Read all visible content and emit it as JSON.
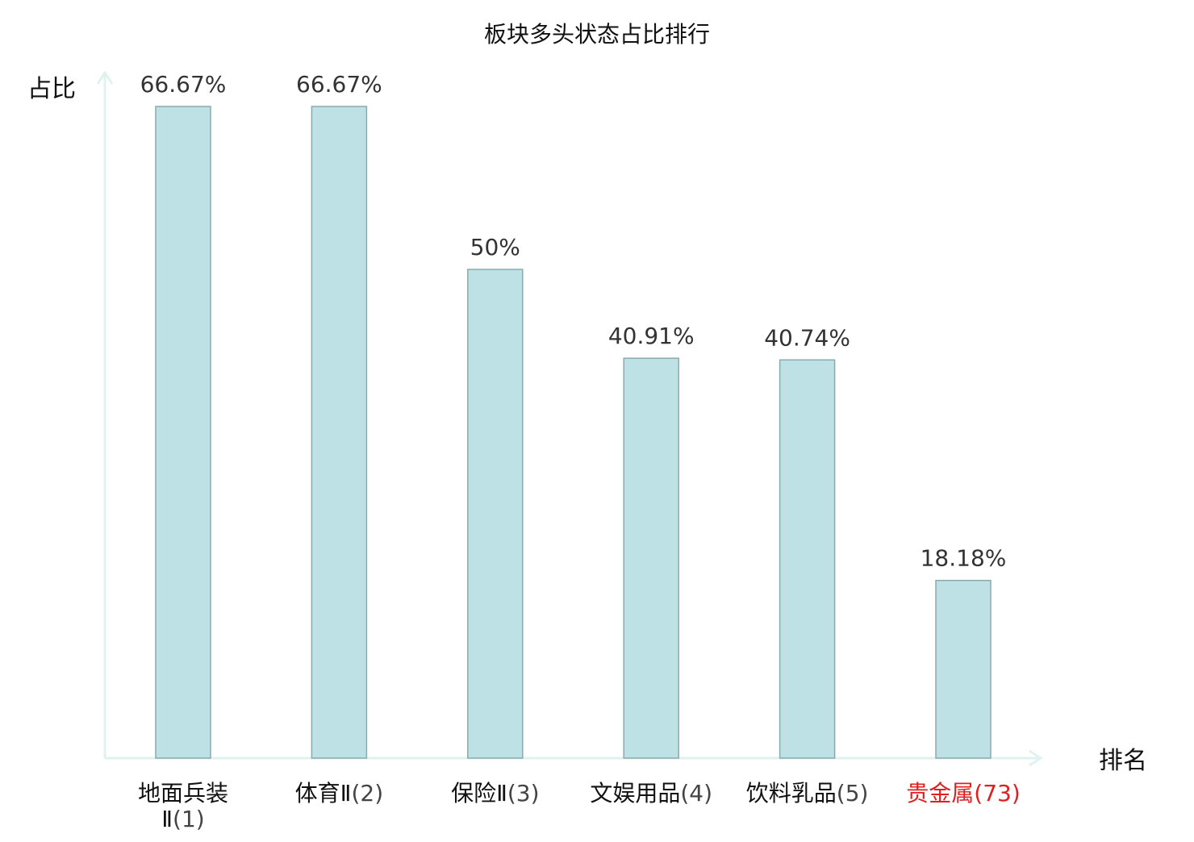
{
  "chart_data": {
    "type": "bar",
    "title": "板块多头状态占比排行",
    "xlabel": "排名",
    "ylabel": "占比",
    "categories": [
      {
        "label": "地面兵装Ⅱ",
        "rank": "(1)",
        "highlight": false
      },
      {
        "label": "体育Ⅱ",
        "rank": "(2)",
        "highlight": false
      },
      {
        "label": "保险Ⅱ",
        "rank": "(3)",
        "highlight": false
      },
      {
        "label": "文娱用品",
        "rank": "(4)",
        "highlight": false
      },
      {
        "label": "饮料乳品",
        "rank": "(5)",
        "highlight": false
      },
      {
        "label": "贵金属",
        "rank": "(73)",
        "highlight": true
      }
    ],
    "values": [
      66.67,
      66.67,
      50,
      40.91,
      40.74,
      18.18
    ],
    "value_labels": [
      "66.67%",
      "66.67%",
      "50%",
      "40.91%",
      "40.74%",
      "18.18%"
    ],
    "ylim": [
      0,
      66.67
    ],
    "grid": false,
    "legend": "none",
    "colors": {
      "bar_fill": "#bde1e4",
      "bar_stroke": "#8aabad",
      "axis": "#e0f2f0",
      "text": "#333333",
      "label_text": "#111111",
      "highlight_text": "#e0201f"
    }
  }
}
